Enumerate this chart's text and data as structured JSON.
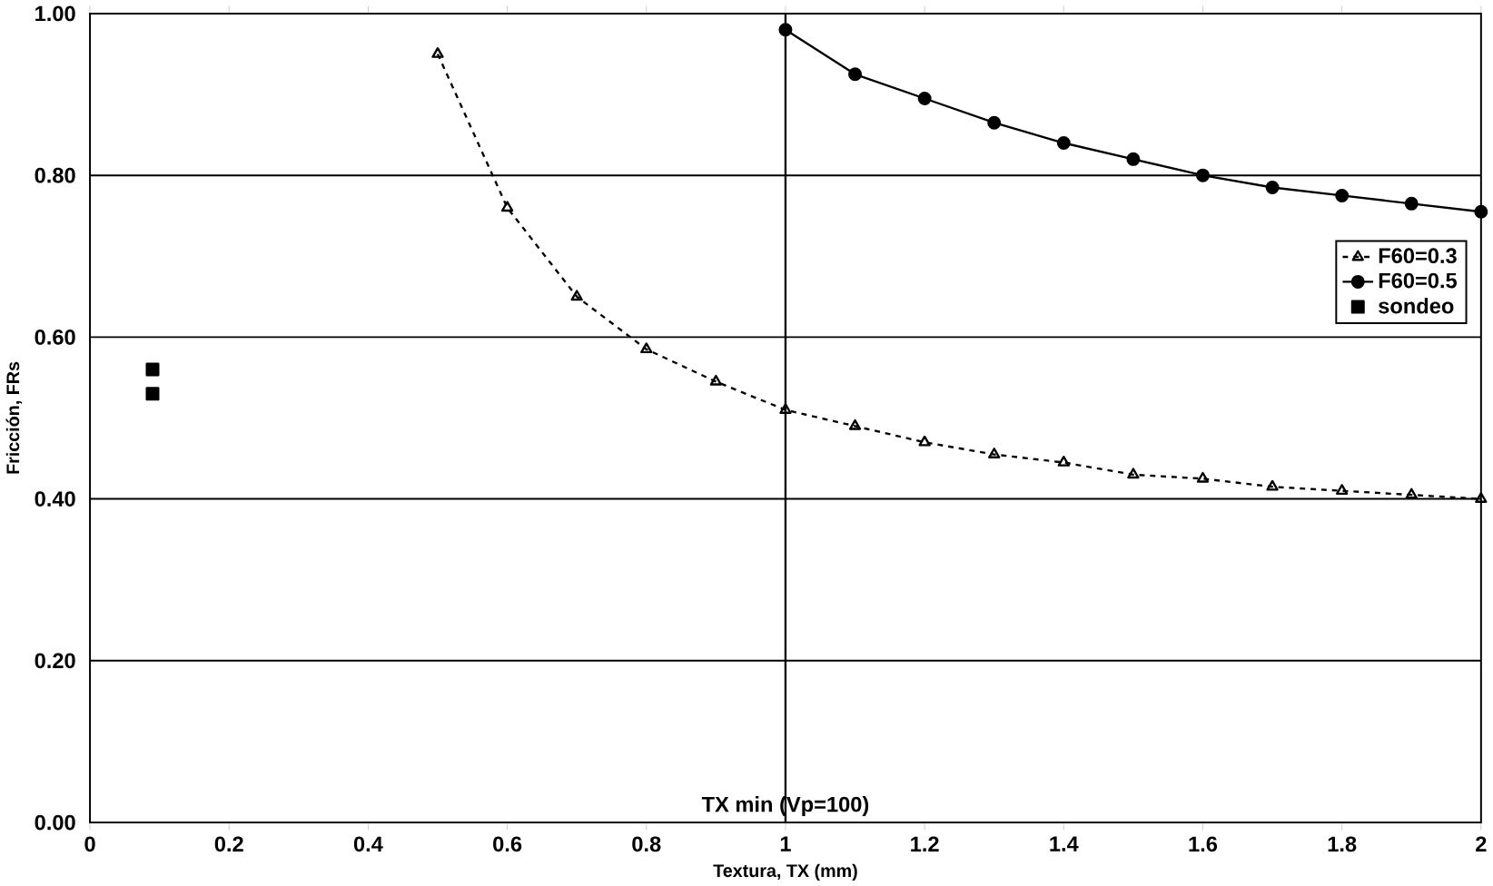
{
  "chart_data": {
    "type": "line",
    "xlabel": "Textura, TX (mm)",
    "ylabel": "Fricción, FRs",
    "xlim": [
      0,
      2
    ],
    "ylim": [
      0,
      1
    ],
    "xticks": [
      0,
      0.2,
      0.4,
      0.6,
      0.8,
      1,
      1.2,
      1.4,
      1.6,
      1.8,
      2
    ],
    "yticks": [
      {
        "value": 0,
        "label": "0.00"
      },
      {
        "value": 0.2,
        "label": "0.20"
      },
      {
        "value": 0.4,
        "label": "0.40"
      },
      {
        "value": 0.6,
        "label": "0.60"
      },
      {
        "value": 0.8,
        "label": "0.80"
      },
      {
        "value": 1,
        "label": "1.00"
      }
    ],
    "grid": "y",
    "legend": "right",
    "ref_lines": [
      {
        "axis": "x",
        "value": 1,
        "label": "TX min (Vp=100)",
        "color": "#000000"
      }
    ],
    "series": [
      {
        "name": "F60=0.3",
        "color": "#000000",
        "marker": "triangle",
        "line_style": "dashed",
        "x": [
          0.5,
          0.6,
          0.7,
          0.8,
          0.9,
          1.0,
          1.1,
          1.2,
          1.3,
          1.4,
          1.5,
          1.6,
          1.7,
          1.8,
          1.9,
          2.0
        ],
        "values": [
          0.95,
          0.76,
          0.65,
          0.585,
          0.545,
          0.51,
          0.49,
          0.47,
          0.455,
          0.445,
          0.43,
          0.425,
          0.415,
          0.41,
          0.405,
          0.4
        ]
      },
      {
        "name": "F60=0.5",
        "color": "#000000",
        "marker": "circle",
        "line_style": "solid",
        "x": [
          1.0,
          1.1,
          1.2,
          1.3,
          1.4,
          1.5,
          1.6,
          1.7,
          1.8,
          1.9,
          2.0
        ],
        "values": [
          0.98,
          0.925,
          0.895,
          0.865,
          0.84,
          0.82,
          0.8,
          0.785,
          0.775,
          0.765,
          0.755
        ]
      },
      {
        "name": "sondeo",
        "type": "scatter",
        "color": "#000000",
        "marker": "square",
        "x": [
          0.09,
          0.09
        ],
        "values": [
          0.56,
          0.53
        ]
      }
    ]
  }
}
